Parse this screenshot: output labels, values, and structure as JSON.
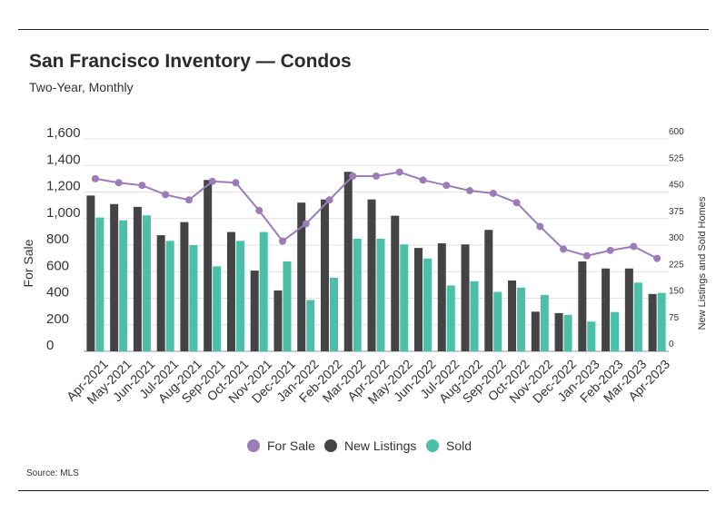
{
  "header": {
    "title": "San Francisco Inventory — Condos",
    "subtitle": "Two-Year, Monthly"
  },
  "footer": {
    "source": "Source: MLS"
  },
  "colors": {
    "for_sale": "#9b7cb8",
    "new_listings": "#444444",
    "sold": "#4bbfa8",
    "grid": "#e3e3e3",
    "axis": "#999999"
  },
  "chart_data": {
    "type": "bar",
    "categories": [
      "Apr-2021",
      "May-2021",
      "Jun-2021",
      "Jul-2021",
      "Aug-2021",
      "Sep-2021",
      "Oct-2021",
      "Nov-2021",
      "Dec-2021",
      "Jan-2022",
      "Feb-2022",
      "Mar-2022",
      "Apr-2022",
      "May-2022",
      "Jun-2022",
      "Jul-2022",
      "Aug-2022",
      "Sep-2022",
      "Oct-2022",
      "Nov-2022",
      "Dec-2022",
      "Jan-2023",
      "Feb-2023",
      "Mar-2023",
      "Apr-2023"
    ],
    "series": [
      {
        "name": "For Sale",
        "type": "line",
        "axis": "left",
        "values": [
          1300,
          1270,
          1250,
          1180,
          1140,
          1280,
          1270,
          1060,
          830,
          960,
          1140,
          1320,
          1320,
          1350,
          1290,
          1250,
          1210,
          1190,
          1120,
          940,
          770,
          720,
          760,
          790,
          700
        ]
      },
      {
        "name": "New Listings",
        "type": "bar",
        "axis": "right",
        "values": [
          440,
          416,
          408,
          328,
          365,
          484,
          337,
          228,
          172,
          420,
          429,
          507,
          429,
          383,
          292,
          305,
          302,
          343,
          200,
          112,
          108,
          254,
          234,
          234,
          162
        ]
      },
      {
        "name": "Sold",
        "type": "bar",
        "axis": "right",
        "values": [
          378,
          370,
          384,
          312,
          300,
          240,
          312,
          337,
          254,
          145,
          208,
          318,
          318,
          302,
          262,
          186,
          198,
          168,
          180,
          159,
          103,
          84,
          111,
          194,
          165
        ]
      }
    ],
    "xlabel": "",
    "ylabel": "For Sale",
    "ylabel_right": "New Listings and Sold Homes",
    "ylim": [
      0,
      1600
    ],
    "ylim_right": [
      0,
      600
    ],
    "yticks": [
      "0",
      "200",
      "400",
      "600",
      "800",
      "1,000",
      "1,200",
      "1,400",
      "1,600"
    ],
    "yticks_right": [
      "0",
      "75",
      "150",
      "225",
      "300",
      "375",
      "450",
      "525",
      "600"
    ],
    "grid": true,
    "legend": [
      "For Sale",
      "New Listings",
      "Sold"
    ],
    "legend_position": "bottom"
  }
}
